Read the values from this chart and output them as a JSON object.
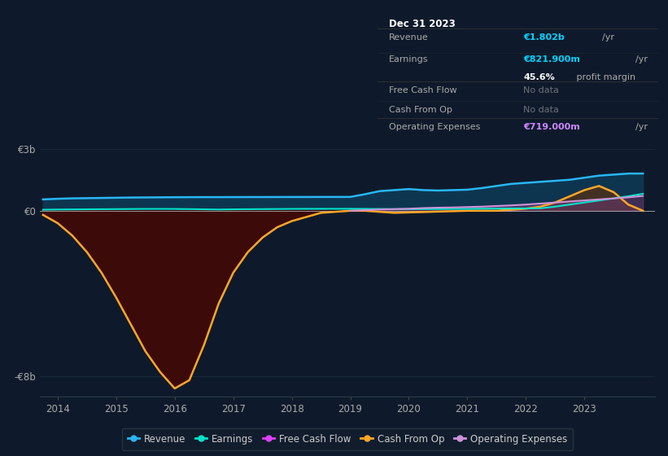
{
  "bg_color": "#0e1a2b",
  "plot_bg_color": "#0e1a2b",
  "ylim": [
    -9000000000.0,
    3800000000.0
  ],
  "xlim": [
    2013.7,
    2024.2
  ],
  "yticks": [
    -8000000000.0,
    0,
    3000000000.0
  ],
  "ytick_labels": [
    "-€8b",
    "€0",
    "€3b"
  ],
  "xticks": [
    2014,
    2015,
    2016,
    2017,
    2018,
    2019,
    2020,
    2021,
    2022,
    2023
  ],
  "grid_color": "#1e3040",
  "zero_line_color": "#cccccc",
  "years": [
    2013.75,
    2014.0,
    2014.25,
    2014.5,
    2014.75,
    2015.0,
    2015.25,
    2015.5,
    2015.75,
    2016.0,
    2016.25,
    2016.5,
    2016.75,
    2017.0,
    2017.25,
    2017.5,
    2017.75,
    2018.0,
    2018.25,
    2018.5,
    2018.75,
    2019.0,
    2019.25,
    2019.5,
    2019.75,
    2020.0,
    2020.25,
    2020.5,
    2020.75,
    2021.0,
    2021.25,
    2021.5,
    2021.75,
    2022.0,
    2022.25,
    2022.5,
    2022.75,
    2023.0,
    2023.25,
    2023.5,
    2023.75,
    2024.0
  ],
  "revenue": [
    550000000.0,
    580000000.0,
    600000000.0,
    610000000.0,
    620000000.0,
    630000000.0,
    640000000.0,
    645000000.0,
    650000000.0,
    655000000.0,
    658000000.0,
    660000000.0,
    660000000.0,
    662000000.0,
    663000000.0,
    664000000.0,
    665000000.0,
    666000000.0,
    667000000.0,
    668000000.0,
    669000000.0,
    670000000.0,
    800000000.0,
    950000000.0,
    1000000000.0,
    1050000000.0,
    1000000000.0,
    980000000.0,
    1000000000.0,
    1020000000.0,
    1100000000.0,
    1200000000.0,
    1300000000.0,
    1350000000.0,
    1400000000.0,
    1450000000.0,
    1500000000.0,
    1600000000.0,
    1700000000.0,
    1750000000.0,
    1800000000.0,
    1802000000.0
  ],
  "earnings": [
    50000000.0,
    60000000.0,
    65000000.0,
    70000000.0,
    75000000.0,
    80000000.0,
    85000000.0,
    90000000.0,
    90000000.0,
    88000000.0,
    80000000.0,
    70000000.0,
    60000000.0,
    70000000.0,
    75000000.0,
    80000000.0,
    85000000.0,
    90000000.0,
    92000000.0,
    93000000.0,
    94000000.0,
    95000000.0,
    90000000.0,
    85000000.0,
    80000000.0,
    78000000.0,
    80000000.0,
    85000000.0,
    90000000.0,
    95000000.0,
    100000000.0,
    105000000.0,
    110000000.0,
    115000000.0,
    120000000.0,
    200000000.0,
    300000000.0,
    400000000.0,
    500000000.0,
    600000000.0,
    700000000.0,
    821900000.0
  ],
  "cash_from_op": [
    -200000000.0,
    -600000000.0,
    -1200000000.0,
    -2000000000.0,
    -3000000000.0,
    -4200000000.0,
    -5500000000.0,
    -6800000000.0,
    -7800000000.0,
    -8600000000.0,
    -8200000000.0,
    -6500000000.0,
    -4500000000.0,
    -3000000000.0,
    -2000000000.0,
    -1300000000.0,
    -800000000.0,
    -500000000.0,
    -300000000.0,
    -100000000.0,
    -50000000.0,
    0,
    0,
    -50000000.0,
    -100000000.0,
    -80000000.0,
    -60000000.0,
    -40000000.0,
    -20000000.0,
    0,
    0,
    0,
    50000000.0,
    100000000.0,
    200000000.0,
    400000000.0,
    700000000.0,
    1000000000.0,
    1200000000.0,
    900000000.0,
    300000000.0,
    0
  ],
  "operating_expenses": [
    null,
    null,
    null,
    null,
    null,
    null,
    null,
    null,
    null,
    null,
    null,
    null,
    null,
    null,
    null,
    null,
    null,
    null,
    null,
    null,
    null,
    0,
    30000000.0,
    60000000.0,
    80000000.0,
    100000000.0,
    130000000.0,
    150000000.0,
    160000000.0,
    180000000.0,
    200000000.0,
    230000000.0,
    260000000.0,
    300000000.0,
    350000000.0,
    400000000.0,
    450000000.0,
    500000000.0,
    550000000.0,
    600000000.0,
    650000000.0,
    719000000.0
  ],
  "revenue_color": "#29b6f6",
  "earnings_color": "#00e5cc",
  "free_cash_flow_color": "#e040fb",
  "cash_from_op_color": "#ffa726",
  "operating_expenses_color": "#ce93d8",
  "revenue_fill_color": "#0d3550",
  "cash_neg_fill_color": "#3d0a0a",
  "cash_pos_fill_color": "#5a3010",
  "op_exp_fill_color": "#6b3d7a",
  "tooltip_bg": "#0a0a0a",
  "tooltip_border": "#333333",
  "tooltip_text": "#aaaaaa",
  "tooltip_cyan": "#00d4ff",
  "tooltip_magenta": "#cc88ff",
  "tooltip_white": "#ffffff",
  "legend_bg": "#131f2e",
  "legend_border": "#2a3a4a",
  "legend_text": "#cccccc"
}
